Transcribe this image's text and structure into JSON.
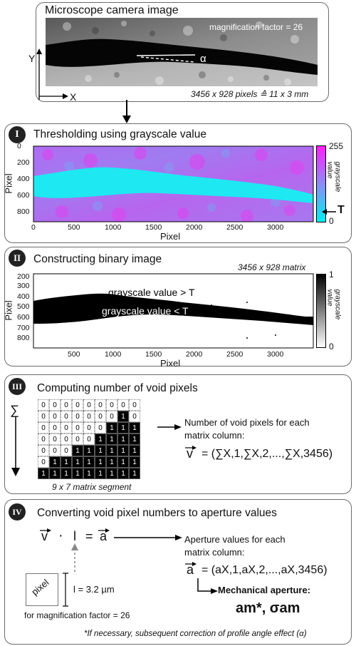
{
  "top": {
    "title": "Microscope camera image",
    "magnification": "magnification factor = 26",
    "alpha": "α",
    "axis_y": "Y",
    "axis_x": "X",
    "dimensions": "3456 x 928 pixels ≙ 11 x 3 mm"
  },
  "panel1": {
    "badge": "I",
    "title": "Thresholding using grayscale value",
    "y_ticks": [
      "0",
      "200",
      "400",
      "600",
      "800"
    ],
    "x_ticks": [
      "0",
      "500",
      "1000",
      "1500",
      "2000",
      "2500",
      "3000"
    ],
    "ylabel": "Pixel",
    "xlabel": "Pixel",
    "colorbar_max": "255",
    "colorbar_min": "0",
    "colorbar_label": "grayscale value",
    "threshold": "T",
    "colors": {
      "low": "#22e6f0",
      "high": "#ff2bff"
    }
  },
  "panel2": {
    "badge": "II",
    "title": "Constructing binary image",
    "matrix_size": "3456 x 928 matrix",
    "y_ticks": [
      "200",
      "300",
      "400",
      "500",
      "600",
      "700",
      "800"
    ],
    "x_ticks": [
      "500",
      "1000",
      "1500",
      "2000",
      "2500",
      "3000"
    ],
    "ylabel": "Pixel",
    "xlabel": "Pixel",
    "label_above": "grayscale value > T",
    "label_below": "grayscale value < T",
    "colorbar_max": "1",
    "colorbar_min": "0",
    "colorbar_label": "grayscale value"
  },
  "panel3": {
    "badge": "III",
    "title": "Computing number of void pixels",
    "sum_symbol": "∑",
    "matrix_caption": "9 x 7 matrix segment",
    "matrix": [
      [
        0,
        0,
        0,
        0,
        0,
        0,
        0,
        0,
        0
      ],
      [
        0,
        0,
        0,
        0,
        0,
        0,
        0,
        1,
        0
      ],
      [
        0,
        0,
        0,
        0,
        0,
        0,
        1,
        1,
        1
      ],
      [
        0,
        0,
        0,
        0,
        0,
        1,
        1,
        1,
        1
      ],
      [
        0,
        0,
        0,
        1,
        1,
        1,
        1,
        1,
        1
      ],
      [
        0,
        1,
        1,
        1,
        1,
        1,
        1,
        1,
        1
      ],
      [
        1,
        1,
        1,
        1,
        1,
        1,
        1,
        1,
        1
      ]
    ],
    "desc_line1": "Number of void pixels for each",
    "desc_line2": "matrix column:",
    "vector_v": "v",
    "formula": "= (∑X,1,∑X,2,...,∑X,3456)"
  },
  "panel4": {
    "badge": "IV",
    "title": "Converting void pixel numbers to aperture values",
    "vector_v": "v",
    "dot": "·",
    "l_symbol": "l",
    "equals": "=",
    "vector_a": "a",
    "desc_line1": "Aperture values for each",
    "desc_line2": "matrix column:",
    "formula": "= (aX,1,aX,2,...,aX,3456)",
    "pixel_label": "pixel",
    "l_value": "l = 3.2 µm",
    "magnification_note": "for magnification factor = 26",
    "mech_label": "Mechanical aperture:",
    "mech_value": "am*, σam",
    "footnote": "*If necessary, subsequent correction of profile angle effect (α)"
  }
}
